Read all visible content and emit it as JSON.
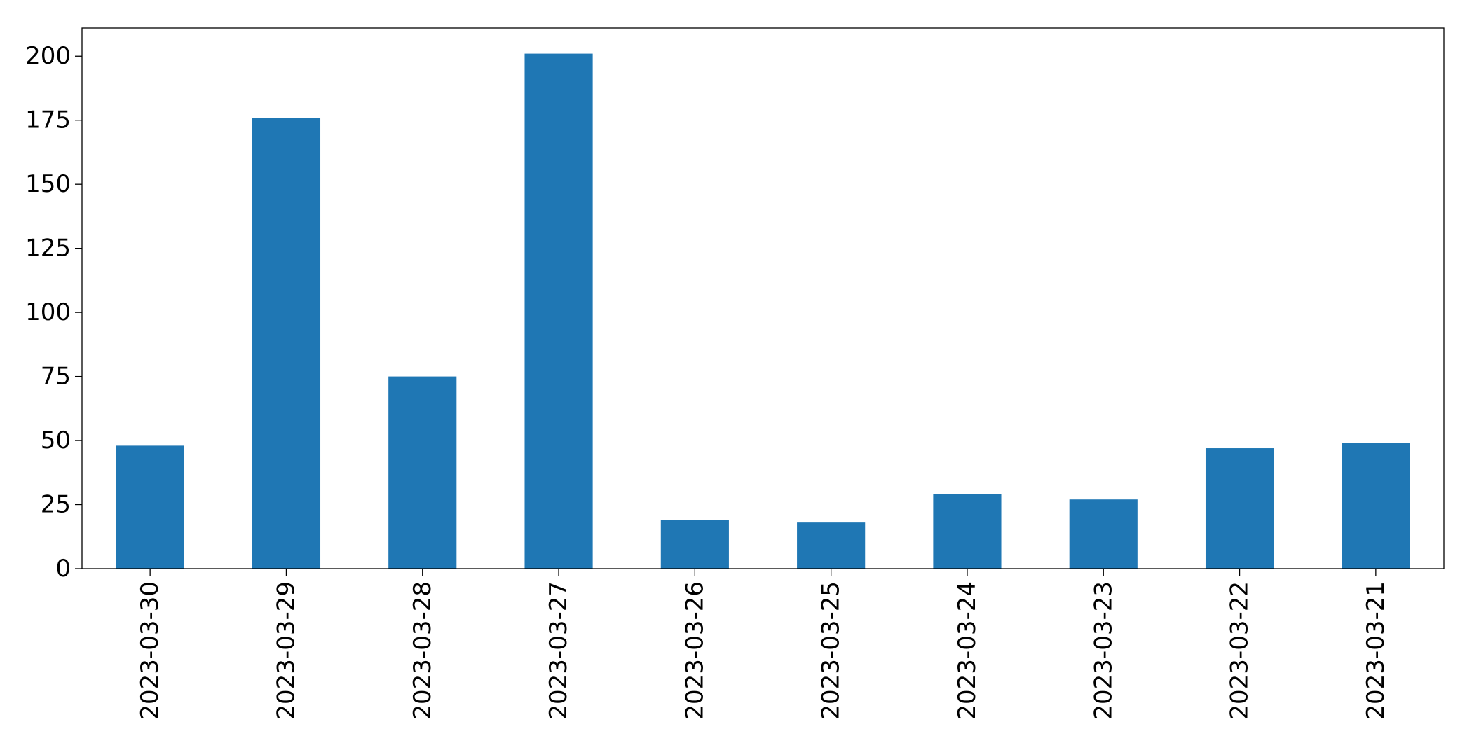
{
  "chart_data": {
    "type": "bar",
    "categories": [
      "2023-03-30",
      "2023-03-29",
      "2023-03-28",
      "2023-03-27",
      "2023-03-26",
      "2023-03-25",
      "2023-03-24",
      "2023-03-23",
      "2023-03-22",
      "2023-03-21"
    ],
    "values": [
      48,
      176,
      75,
      201,
      19,
      18,
      29,
      27,
      47,
      49
    ],
    "yticks": [
      0,
      25,
      50,
      75,
      100,
      125,
      150,
      175,
      200
    ],
    "ylim": [
      0,
      211
    ],
    "title": "",
    "xlabel": "",
    "ylabel": "",
    "grid": false,
    "legend": "none",
    "bar_color": "#1f77b4"
  }
}
